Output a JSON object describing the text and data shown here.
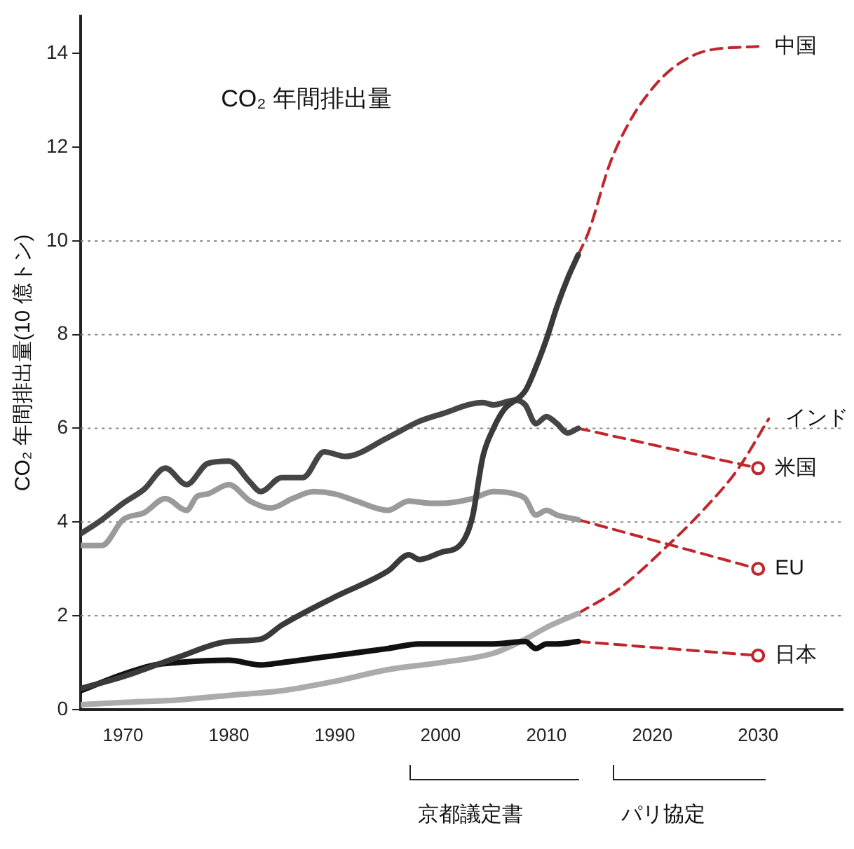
{
  "chart_data": {
    "type": "line",
    "title": "CO₂ 年間排出量",
    "ylabel": "CO₂ 年間排出量(10 億トン)",
    "xlim": [
      1966,
      2038
    ],
    "xticks": [
      1970,
      1980,
      1990,
      2000,
      2010,
      2020,
      2030
    ],
    "ylim": [
      0,
      14.8
    ],
    "yticks": [
      0,
      2,
      4,
      6,
      8,
      10,
      12,
      14
    ],
    "legend": false,
    "marker": "none",
    "line_style": "solid",
    "ref_lines": [
      {
        "axis": "y",
        "value": 2,
        "line_style": "dotted",
        "color": "#888888"
      },
      {
        "axis": "y",
        "value": 4,
        "line_style": "dotted",
        "color": "#888888"
      },
      {
        "axis": "y",
        "value": 6,
        "line_style": "dotted",
        "color": "#888888"
      },
      {
        "axis": "y",
        "value": 8,
        "line_style": "dotted",
        "color": "#888888"
      },
      {
        "axis": "y",
        "value": 10,
        "line_style": "dotted",
        "color": "#888888"
      }
    ],
    "annotations": [
      "京都議定書",
      "パリ協定"
    ],
    "series": [
      {
        "color": "#3a3a3a",
        "x": [
          1966,
          1970,
          1975,
          1980,
          1983,
          1985,
          1990,
          1995,
          1997,
          1998,
          2000,
          2002,
          2003,
          2004,
          2005,
          2006,
          2008,
          2009,
          2010,
          2011,
          2012,
          2013
        ],
        "values": [
          0.45,
          0.7,
          1.1,
          1.45,
          1.5,
          1.8,
          2.4,
          2.95,
          3.3,
          3.2,
          3.35,
          3.55,
          4.1,
          5.4,
          6.0,
          6.4,
          6.8,
          7.3,
          7.9,
          8.6,
          9.2,
          9.7
        ]
      },
      {
        "color": "#454545",
        "x": [
          1966,
          1968,
          1970,
          1972,
          1974,
          1976,
          1978,
          1980,
          1982,
          1983,
          1985,
          1987,
          1989,
          1991,
          1995,
          1998,
          2000,
          2004,
          2005,
          2007,
          2008,
          2009,
          2010,
          2011,
          2012,
          2013
        ],
        "values": [
          3.75,
          4.05,
          4.4,
          4.7,
          5.15,
          4.8,
          5.25,
          5.3,
          4.85,
          4.65,
          4.95,
          4.95,
          5.5,
          5.4,
          5.8,
          6.15,
          6.3,
          6.55,
          6.5,
          6.6,
          6.5,
          6.1,
          6.25,
          6.1,
          5.9,
          6.0
        ]
      },
      {
        "color": "#9a9a9a",
        "x": [
          1966,
          1968,
          1970,
          1972,
          1974,
          1976,
          1977,
          1978,
          1980,
          1982,
          1984,
          1986,
          1988,
          1990,
          1992,
          1995,
          1997,
          1999,
          2000,
          2003,
          2005,
          2007,
          2008,
          2009,
          2010,
          2011,
          2013
        ],
        "values": [
          3.5,
          3.5,
          4.05,
          4.2,
          4.5,
          4.25,
          4.55,
          4.6,
          4.8,
          4.45,
          4.3,
          4.5,
          4.65,
          4.6,
          4.45,
          4.25,
          4.45,
          4.4,
          4.4,
          4.5,
          4.65,
          4.6,
          4.5,
          4.15,
          4.25,
          4.15,
          4.05
        ]
      },
      {
        "color": "#111111",
        "x": [
          1966,
          1970,
          1973,
          1975,
          1980,
          1983,
          1985,
          1990,
          1995,
          1998,
          2000,
          2005,
          2008,
          2009,
          2010,
          2011,
          2013
        ],
        "values": [
          0.4,
          0.75,
          0.95,
          1.0,
          1.05,
          0.95,
          1.0,
          1.15,
          1.3,
          1.4,
          1.4,
          1.4,
          1.45,
          1.3,
          1.4,
          1.4,
          1.45
        ]
      },
      {
        "color": "#ababab",
        "x": [
          1966,
          1970,
          1975,
          1980,
          1985,
          1990,
          1995,
          2000,
          2005,
          2008,
          2010,
          2013
        ],
        "values": [
          0.1,
          0.15,
          0.2,
          0.3,
          0.4,
          0.6,
          0.85,
          1.0,
          1.2,
          1.5,
          1.75,
          2.05
        ]
      },
      {
        "name": "中国",
        "color": "#c0272d",
        "line_style": "dashed",
        "x": [
          2013,
          2014,
          2016,
          2018,
          2020,
          2022,
          2025,
          2030
        ],
        "values": [
          9.7,
          10.2,
          11.65,
          12.6,
          13.25,
          13.7,
          14.05,
          14.15
        ]
      },
      {
        "name": "インド",
        "color": "#c0272d",
        "line_style": "dashed",
        "x": [
          2013,
          2017,
          2021.7,
          2025,
          2028,
          2031
        ],
        "values": [
          2.05,
          2.6,
          3.55,
          4.3,
          5.1,
          6.2
        ]
      },
      {
        "name": "米国",
        "color": "#c0272d",
        "line_style": "dashed",
        "marker": "circle",
        "x": [
          2013,
          2030
        ],
        "values": [
          6.0,
          5.15
        ]
      },
      {
        "name": "EU",
        "color": "#c0272d",
        "line_style": "dashed",
        "marker": "circle",
        "x": [
          2013,
          2030
        ],
        "values": [
          4.05,
          3.0
        ]
      },
      {
        "name": "日本",
        "color": "#c0272d",
        "line_style": "dashed",
        "marker": "circle",
        "x": [
          2013,
          2030
        ],
        "values": [
          1.45,
          1.15
        ]
      }
    ]
  }
}
